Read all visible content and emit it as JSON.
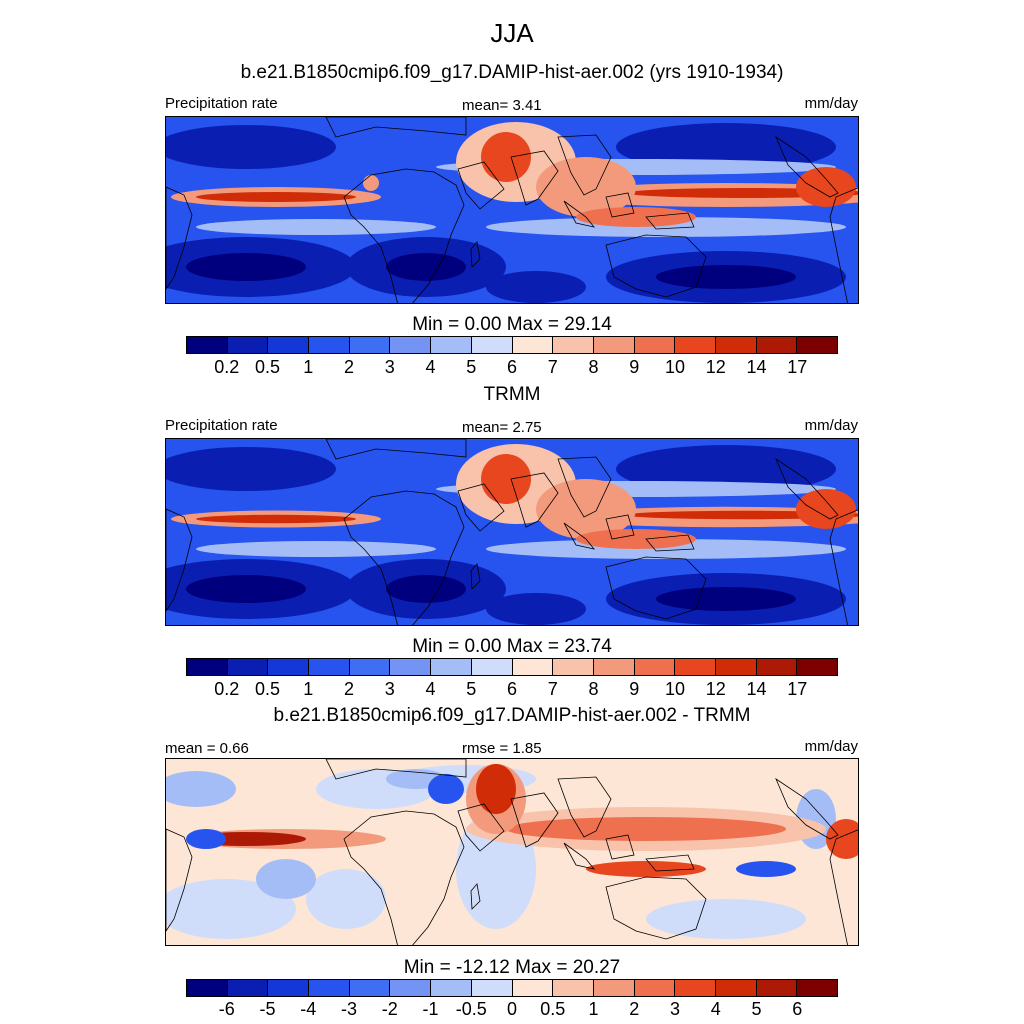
{
  "title": "JJA",
  "panels": [
    {
      "heading": "b.e21.B1850cmip6.f09_g17.DAMIP-hist-aer.002 (yrs 1910-1934)",
      "left_label": "Precipitation rate",
      "center_label": "mean=   3.41",
      "right_label": "mm/day",
      "stats": "Min =   0.00 Max =  29.14",
      "ticks": [
        "0.2",
        "0.5",
        "1",
        "2",
        "3",
        "4",
        "5",
        "6",
        "7",
        "8",
        "9",
        "10",
        "12",
        "14",
        "17"
      ],
      "map_icon": "global-precipitation-map",
      "kind": "model"
    },
    {
      "heading": "TRMM",
      "left_label": "Precipitation rate",
      "center_label": "mean=   2.75",
      "right_label": "mm/day",
      "stats": "Min =   0.00 Max =  23.74",
      "ticks": [
        "0.2",
        "0.5",
        "1",
        "2",
        "3",
        "4",
        "5",
        "6",
        "7",
        "8",
        "9",
        "10",
        "12",
        "14",
        "17"
      ],
      "map_icon": "global-precipitation-map",
      "kind": "obs"
    },
    {
      "heading": "b.e21.B1850cmip6.f09_g17.DAMIP-hist-aer.002 - TRMM",
      "left_label": "mean =   0.66",
      "center_label": "rmse =   1.85",
      "right_label": "mm/day",
      "stats": "Min = -12.12 Max =  20.27",
      "ticks": [
        "-6",
        "-5",
        "-4",
        "-3",
        "-2",
        "-1",
        "-0.5",
        "0",
        "0.5",
        "1",
        "2",
        "3",
        "4",
        "5",
        "6"
      ],
      "map_icon": "precipitation-difference-map",
      "kind": "diff"
    }
  ],
  "colormap": [
    "#00007f",
    "#0a1fb2",
    "#1437d8",
    "#2753ef",
    "#3e6ff3",
    "#7394f5",
    "#a5bdf6",
    "#d0ddfa",
    "#fde6d6",
    "#f8c3aa",
    "#f39a7c",
    "#ef704f",
    "#e8461f",
    "#d02c08",
    "#ac1a05",
    "#7d0000"
  ]
}
